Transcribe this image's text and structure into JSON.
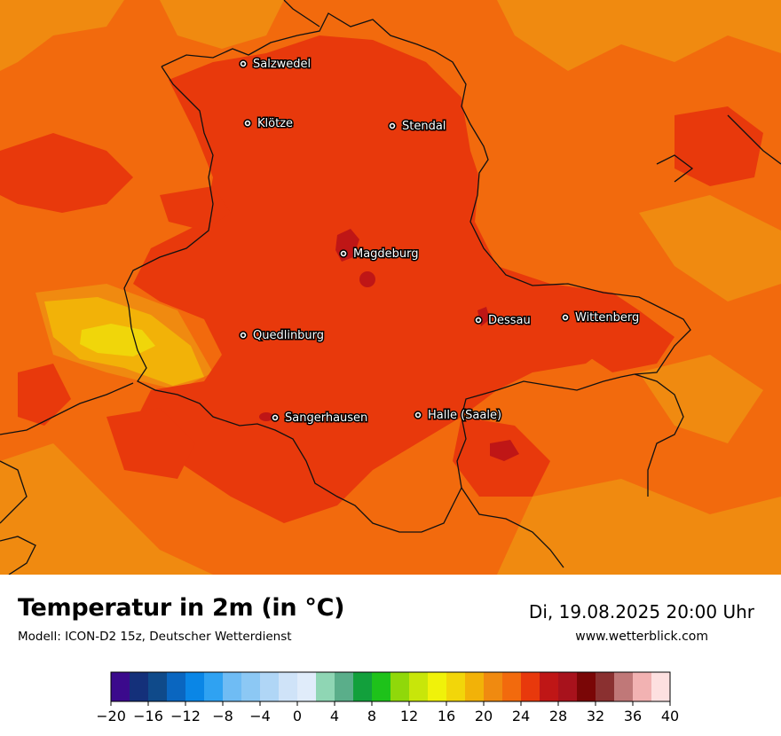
{
  "map": {
    "colors": {
      "base": "#f26a0d",
      "warm": "#e8390c",
      "hot": "#bf1616",
      "cool_orange": "#f08a10",
      "yellow_orange": "#f2b208",
      "yellow": "#f0d60a",
      "border": "#111111",
      "city_dot": "#ffffff"
    },
    "cities": [
      {
        "name": "Salzwedel"
      },
      {
        "name": "Klötze"
      },
      {
        "name": "Stendal"
      },
      {
        "name": "Magdeburg"
      },
      {
        "name": "Dessau"
      },
      {
        "name": "Wittenberg"
      },
      {
        "name": "Quedlinburg"
      },
      {
        "name": "Sangerhausen"
      },
      {
        "name": "Halle (Saale)"
      }
    ]
  },
  "footer": {
    "title": "Temperatur in 2m (in °C)",
    "subtitle": "Modell: ICON-D2 15z, Deutscher Wetterdienst",
    "datetime": "Di, 19.08.2025 20:00 Uhr",
    "website": "www.wetterblick.com"
  },
  "legend": {
    "unit": "°C",
    "tick_labels": [
      "−20",
      "−16",
      "−12",
      "−8",
      "−4",
      "0",
      "4",
      "8",
      "12",
      "16",
      "20",
      "24",
      "28",
      "32",
      "36",
      "40"
    ],
    "colors": [
      "#3b0a8c",
      "#14307a",
      "#0f4a8a",
      "#0a66c0",
      "#0a86e6",
      "#2fa2f2",
      "#6fbcf4",
      "#8cc8f4",
      "#b0d6f6",
      "#cfe3f8",
      "#e0ecfa",
      "#8fd6b4",
      "#5aae8a",
      "#12a03c",
      "#1ec21a",
      "#90d80a",
      "#c8e60a",
      "#f0f20a",
      "#f2d60a",
      "#f2b208",
      "#f08a10",
      "#f26a0d",
      "#e8390c",
      "#bf1616",
      "#a8121c",
      "#7a0606",
      "#8a3030",
      "#c07878",
      "#f2b2b2",
      "#fde0e0"
    ]
  }
}
